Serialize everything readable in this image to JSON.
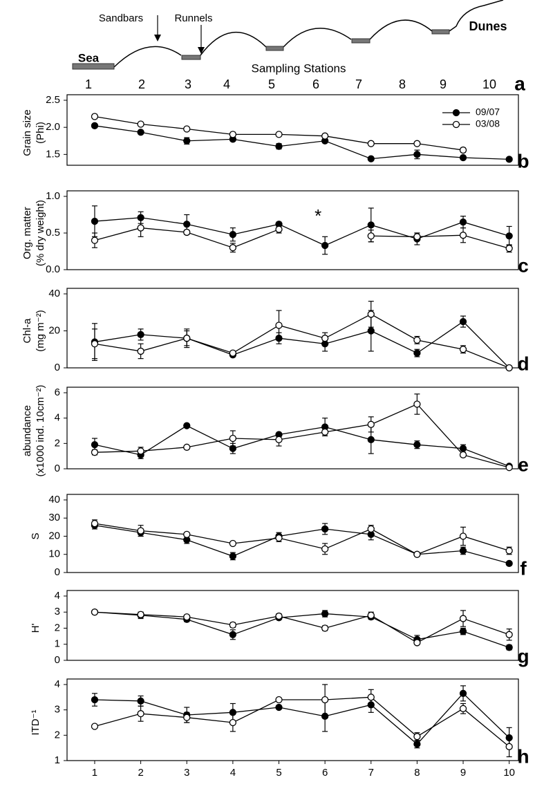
{
  "diagram": {
    "labels": {
      "sandbars": "Sandbars",
      "runnels": "Runnels",
      "sea": "Sea",
      "dunes": "Dunes",
      "axis": "Sampling Stations"
    },
    "stations": [
      1,
      2,
      3,
      4,
      5,
      6,
      7,
      8,
      9,
      10
    ],
    "panel": "a"
  },
  "chart_data": [
    {
      "type": "line",
      "label": "b",
      "ylabel": [
        "Grain size",
        "(Phi)"
      ],
      "x": [
        1,
        2,
        3,
        4,
        5,
        6,
        7,
        8,
        9,
        10
      ],
      "xlim": [
        0.4,
        10.2
      ],
      "ylim": [
        1.3,
        2.5
      ],
      "yticks": [
        1.5,
        {
          "value": 2,
          "label": "2.0"
        },
        2.5
      ],
      "legend": "upper right",
      "series": [
        {
          "name": "09/07",
          "color": "#000000",
          "fill": "#000000",
          "values": [
            2.03,
            1.91,
            1.75,
            1.78,
            1.65,
            1.75,
            1.42,
            1.5,
            1.44,
            1.41
          ],
          "errors": [
            0.03,
            0.02,
            0.06,
            0.03,
            0.05,
            0.03,
            0.03,
            0.08,
            0.03,
            0.02
          ]
        },
        {
          "name": "03/08",
          "color": "#000000",
          "fill": "#ffffff",
          "values": [
            2.2,
            2.06,
            1.97,
            1.87,
            1.87,
            1.84,
            1.7,
            1.7,
            1.58,
            null
          ],
          "errors": [
            0.04,
            0.02,
            0.03,
            0.04,
            0.02,
            0.02,
            0.02,
            0.03,
            0.04,
            null
          ]
        }
      ]
    },
    {
      "type": "line",
      "label": "c",
      "ylabel": [
        "Org. matter",
        "(% dry weight)"
      ],
      "x": [
        1,
        2,
        3,
        4,
        5,
        6,
        7,
        8,
        9,
        10
      ],
      "xlim": [
        0.4,
        10.2
      ],
      "ylim": [
        0,
        1
      ],
      "yticks": [
        {
          "value": 0,
          "label": "0.0"
        },
        0.5,
        {
          "value": 1,
          "label": "1.0"
        }
      ],
      "annotation": "*",
      "series": [
        {
          "color": "#000000",
          "fill": "#000000",
          "values": [
            0.66,
            0.71,
            0.62,
            0.48,
            0.62,
            0.33,
            0.61,
            0.42,
            0.65,
            0.46
          ],
          "errors": [
            0.21,
            0.08,
            0.13,
            0.09,
            0.03,
            0.12,
            0.23,
            0.08,
            0.08,
            0.13
          ]
        },
        {
          "color": "#000000",
          "fill": "#ffffff",
          "values": [
            0.4,
            0.57,
            0.51,
            0.3,
            0.55,
            null,
            0.46,
            0.45,
            0.47,
            0.29
          ],
          "errors": [
            0.1,
            0.12,
            0.03,
            0.06,
            0.05,
            null,
            0.08,
            0.05,
            0.1,
            0.05
          ]
        }
      ]
    },
    {
      "type": "line",
      "label": "d",
      "ylabel": [
        "Chl-a",
        "(mg m⁻²)"
      ],
      "x": [
        1,
        2,
        3,
        4,
        5,
        6,
        7,
        8,
        9,
        10
      ],
      "xlim": [
        0.4,
        10.2
      ],
      "ylim": [
        0,
        40
      ],
      "yticks": [
        0,
        20,
        40
      ],
      "series": [
        {
          "color": "#000000",
          "fill": "#000000",
          "values": [
            14,
            18,
            16,
            7,
            16,
            13,
            20,
            8,
            25,
            0
          ],
          "errors": [
            10,
            3,
            4,
            1,
            3,
            4,
            11,
            2,
            3,
            0
          ]
        },
        {
          "color": "#000000",
          "fill": "#ffffff",
          "values": [
            13,
            9,
            16,
            8,
            23,
            16,
            29,
            15,
            10,
            0
          ],
          "errors": [
            8,
            4,
            5,
            1,
            8,
            3,
            7,
            2,
            2,
            0
          ]
        }
      ]
    },
    {
      "type": "line",
      "label": "e",
      "ylabel": [
        "abundance",
        "(x1000 ind. 10cm⁻²)"
      ],
      "x": [
        1,
        2,
        3,
        4,
        5,
        6,
        7,
        8,
        9,
        10
      ],
      "xlim": [
        0.4,
        10.2
      ],
      "ylim": [
        0,
        6
      ],
      "yticks": [
        0,
        2,
        4,
        6
      ],
      "series": [
        {
          "color": "#000000",
          "fill": "#000000",
          "values": [
            1.9,
            1.1,
            3.4,
            1.6,
            2.7,
            3.3,
            2.3,
            1.9,
            1.6,
            0.2
          ],
          "errors": [
            0.5,
            0.3,
            0.1,
            0.4,
            0.1,
            0.7,
            1.1,
            0.3,
            0.3,
            0.1
          ]
        },
        {
          "color": "#000000",
          "fill": "#ffffff",
          "values": [
            1.3,
            1.4,
            1.7,
            2.4,
            2.3,
            2.9,
            3.5,
            5.1,
            1.1,
            0.1
          ],
          "errors": [
            0.2,
            0.3,
            0.1,
            0.6,
            0.5,
            0.3,
            0.6,
            0.8,
            0.1,
            0.1
          ]
        }
      ]
    },
    {
      "type": "line",
      "label": "f",
      "ylabel": [
        "S"
      ],
      "x": [
        1,
        2,
        3,
        4,
        5,
        6,
        7,
        8,
        9,
        10
      ],
      "xlim": [
        0.4,
        10.2
      ],
      "ylim": [
        0,
        40
      ],
      "yticks": [
        0,
        10,
        20,
        30,
        40
      ],
      "series": [
        {
          "color": "#000000",
          "fill": "#000000",
          "values": [
            26,
            22,
            18,
            9,
            20,
            24,
            21,
            10,
            12,
            5
          ],
          "errors": [
            2,
            2,
            2,
            2,
            2,
            3,
            3,
            0.5,
            2,
            1
          ]
        },
        {
          "color": "#000000",
          "fill": "#ffffff",
          "values": [
            27,
            23,
            21,
            16,
            19,
            13,
            24,
            10,
            20,
            12
          ],
          "errors": [
            2,
            3,
            1,
            0.5,
            2,
            3,
            2,
            0.5,
            5,
            2
          ]
        }
      ]
    },
    {
      "type": "line",
      "label": "g",
      "ylabel": [
        "H'"
      ],
      "x": [
        1,
        2,
        3,
        4,
        5,
        6,
        7,
        8,
        9,
        10
      ],
      "xlim": [
        0.4,
        10.2
      ],
      "ylim": [
        0,
        4
      ],
      "yticks": [
        0,
        1,
        2,
        3,
        4
      ],
      "series": [
        {
          "color": "#000000",
          "fill": "#000000",
          "values": [
            3.0,
            2.8,
            2.55,
            1.6,
            2.65,
            2.9,
            2.7,
            1.3,
            1.8,
            0.8
          ],
          "errors": [
            0.1,
            0.2,
            0.15,
            0.3,
            0.1,
            0.2,
            0.15,
            0.25,
            0.2,
            0.15
          ]
        },
        {
          "color": "#000000",
          "fill": "#ffffff",
          "values": [
            3.0,
            2.85,
            2.7,
            2.2,
            2.75,
            2.0,
            2.8,
            1.1,
            2.6,
            1.6
          ],
          "errors": [
            0.1,
            0.15,
            0.1,
            0.15,
            0.15,
            0.15,
            0.2,
            0.1,
            0.5,
            0.35
          ]
        }
      ]
    },
    {
      "type": "line",
      "label": "h",
      "ylabel": [
        "ITD⁻¹"
      ],
      "x": [
        1,
        2,
        3,
        4,
        5,
        6,
        7,
        8,
        9,
        10
      ],
      "xlim": [
        0.4,
        10.2
      ],
      "xticks": [
        1,
        2,
        3,
        4,
        5,
        6,
        7,
        8,
        9,
        10
      ],
      "ylim": [
        1,
        4
      ],
      "yticks": [
        1,
        2,
        3,
        4
      ],
      "series": [
        {
          "color": "#000000",
          "fill": "#000000",
          "values": [
            3.4,
            3.35,
            2.8,
            2.9,
            3.1,
            2.75,
            3.2,
            1.65,
            3.65,
            1.9
          ],
          "errors": [
            0.25,
            0.2,
            0.3,
            0.35,
            0.05,
            0.6,
            0.3,
            0.15,
            0.3,
            0.4
          ]
        },
        {
          "color": "#000000",
          "fill": "#ffffff",
          "values": [
            2.35,
            2.85,
            2.7,
            2.5,
            3.4,
            3.4,
            3.5,
            1.95,
            3.05,
            1.55
          ],
          "errors": [
            0.05,
            0.3,
            0.2,
            0.35,
            0.05,
            0.6,
            0.3,
            0.15,
            0.2,
            0.4
          ]
        }
      ]
    }
  ]
}
